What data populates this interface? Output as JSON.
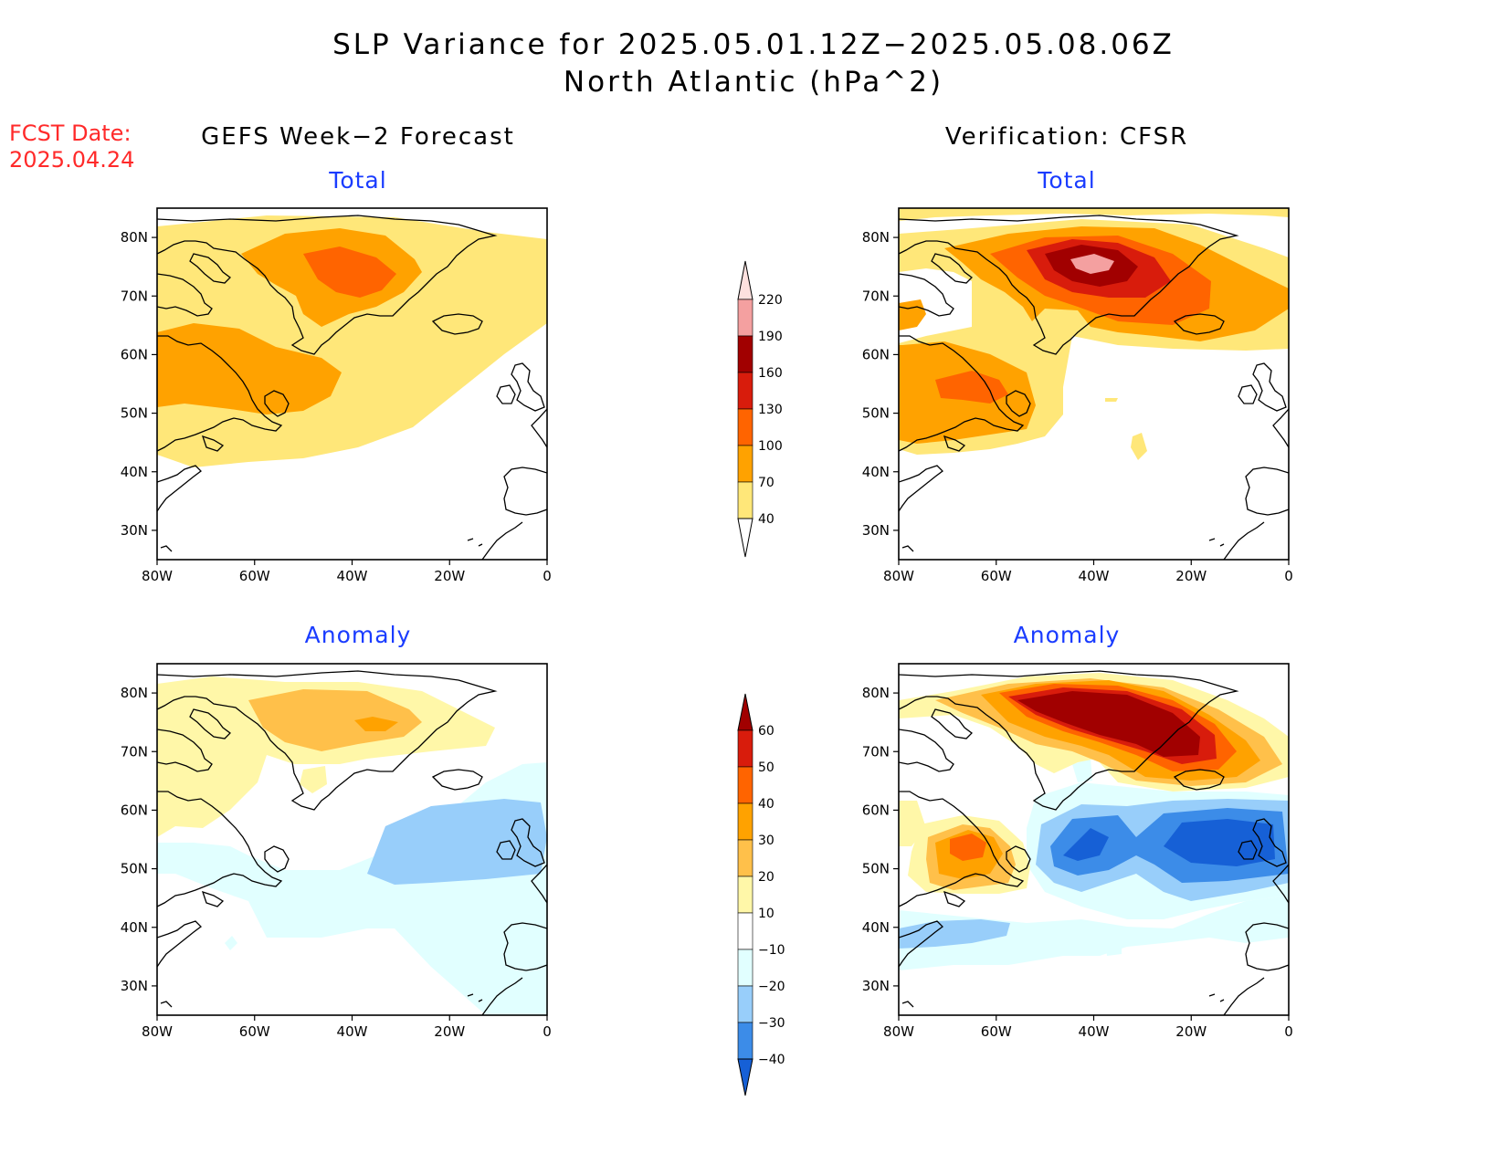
{
  "header": {
    "title_line1": "SLP Variance for 2025.05.01.12Z−2025.05.08.06Z",
    "title_line2": "North Atlantic (hPa^2)",
    "fcst_label": "FCST Date:",
    "fcst_date": "2025.04.24"
  },
  "columns": {
    "left": "GEFS Week−2 Forecast",
    "right": "Verification: CFSR"
  },
  "panels": {
    "gefs_total": "Total",
    "cfsr_total": "Total",
    "gefs_anomaly": "Anomaly",
    "cfsr_anomaly": "Anomaly"
  },
  "axes": {
    "lat_ticks": [
      "80N",
      "70N",
      "60N",
      "50N",
      "40N",
      "30N"
    ],
    "lon_ticks": [
      "80W",
      "60W",
      "40W",
      "20W",
      "0"
    ],
    "lat_values": [
      80,
      70,
      60,
      50,
      40,
      30
    ],
    "lon_values": [
      -80,
      -60,
      -40,
      -20,
      0
    ],
    "lat_range": [
      25,
      85
    ],
    "lon_range": [
      -80,
      0
    ]
  },
  "colorbars": {
    "total": {
      "labels": [
        "220",
        "190",
        "160",
        "130",
        "100",
        "70",
        "40"
      ],
      "colors": [
        "#fde1df",
        "#f4a0a0",
        "#a10000",
        "#d81c0c",
        "#ff6400",
        "#ffa200",
        "#ffe779"
      ]
    },
    "anomaly": {
      "labels": [
        "60",
        "50",
        "40",
        "30",
        "20",
        "10",
        "−10",
        "−20",
        "−30",
        "−40"
      ],
      "colors": [
        "#a10000",
        "#d81c0c",
        "#ff6400",
        "#ffa200",
        "#ffc04a",
        "#fff7a8",
        "#ffffff",
        "#e1ffff",
        "#98cefa",
        "#3c8ce8",
        "#1660d6"
      ]
    }
  },
  "chart_data": {
    "type": "heatmap",
    "title": "SLP Variance for 2025.05.01.12Z−2025.05.08.06Z North Atlantic (hPa^2)",
    "units": "hPa^2",
    "lon_range": [
      -80,
      0
    ],
    "lat_range": [
      25,
      85
    ],
    "total_levels": [
      40,
      70,
      100,
      130,
      160,
      190,
      220
    ],
    "anomaly_levels": [
      -40,
      -30,
      -20,
      -10,
      10,
      20,
      30,
      40,
      50,
      60
    ],
    "panels": [
      {
        "name": "GEFS Week−2 Forecast Total",
        "max_region": "Greenland ~75N 40W",
        "max_level": 100
      },
      {
        "name": "Verification: CFSR Total",
        "max_region": "Greenland ~75N 40W",
        "max_level": 190
      },
      {
        "name": "GEFS Week−2 Forecast Anomaly",
        "max_region": "Greenland ~75N 35W",
        "max_level": 30,
        "min_region": "~55N 20W",
        "min_level": -20
      },
      {
        "name": "Verification: CFSR Anomaly",
        "max_region": "Greenland ~75N 35W",
        "max_level": 60,
        "min_region": "~52N 20W",
        "min_level": -40
      }
    ]
  }
}
